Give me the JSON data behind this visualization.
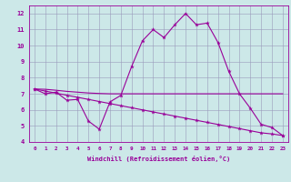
{
  "xlabel": "Windchill (Refroidissement éolien,°C)",
  "hours": [
    0,
    1,
    2,
    3,
    4,
    5,
    6,
    7,
    8,
    9,
    10,
    11,
    12,
    13,
    14,
    15,
    16,
    17,
    18,
    19,
    20,
    21,
    22,
    23
  ],
  "y_peak": [
    7.3,
    7.0,
    7.1,
    6.6,
    6.65,
    5.3,
    4.8,
    6.5,
    6.9,
    8.7,
    10.3,
    11.0,
    10.5,
    11.3,
    12.0,
    11.3,
    11.4,
    10.2,
    8.4,
    7.0,
    6.1,
    5.1,
    4.9,
    4.4
  ],
  "y_flat": [
    7.3,
    7.28,
    7.22,
    7.15,
    7.1,
    7.05,
    7.02,
    7.0,
    7.0,
    7.0,
    7.0,
    7.0,
    7.0,
    7.0,
    7.0,
    7.0,
    7.0,
    7.0,
    7.0,
    7.0,
    7.0,
    7.0,
    7.0,
    7.0
  ],
  "y_diag": [
    7.3,
    7.17,
    7.04,
    6.91,
    6.78,
    6.65,
    6.52,
    6.39,
    6.26,
    6.13,
    6.0,
    5.87,
    5.74,
    5.61,
    5.48,
    5.35,
    5.22,
    5.09,
    4.96,
    4.83,
    4.7,
    4.57,
    4.5,
    4.4
  ],
  "color": "#990099",
  "bg_color": "#cce8e8",
  "ylim": [
    4,
    12.5
  ],
  "xlim": [
    -0.5,
    23.5
  ],
  "yticks": [
    4,
    5,
    6,
    7,
    8,
    9,
    10,
    11,
    12
  ],
  "xticks": [
    0,
    1,
    2,
    3,
    4,
    5,
    6,
    7,
    8,
    9,
    10,
    11,
    12,
    13,
    14,
    15,
    16,
    17,
    18,
    19,
    20,
    21,
    22,
    23
  ]
}
